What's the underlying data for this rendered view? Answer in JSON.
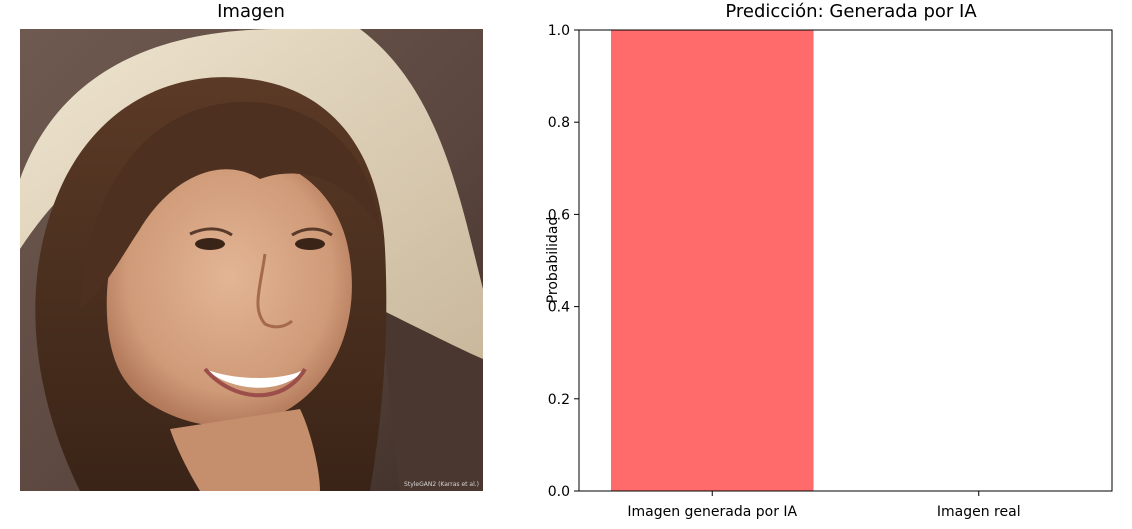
{
  "left_panel": {
    "title": "Imagen",
    "watermark": "StyleGAN2 (Karras et al.)",
    "image_subject": "portrait of a smiling woman with long brown hair and bangs, light wrap behind her head"
  },
  "chart_data": {
    "type": "bar",
    "title": "Predicción: Generada por IA",
    "categories": [
      "Imagen generada por IA",
      "Imagen real"
    ],
    "values": [
      1.0,
      0.0
    ],
    "colors": [
      "#ff6b6b",
      "#6bcb6b"
    ],
    "xlabel": "",
    "ylabel": "Probabilidad",
    "ylim": [
      0,
      1.0
    ],
    "yticks": [
      0.0,
      0.2,
      0.4,
      0.6,
      0.8,
      1.0
    ],
    "ytick_labels": [
      "0.0",
      "0.2",
      "0.4",
      "0.6",
      "0.8",
      "1.0"
    ],
    "grid": false,
    "legend": "none"
  }
}
